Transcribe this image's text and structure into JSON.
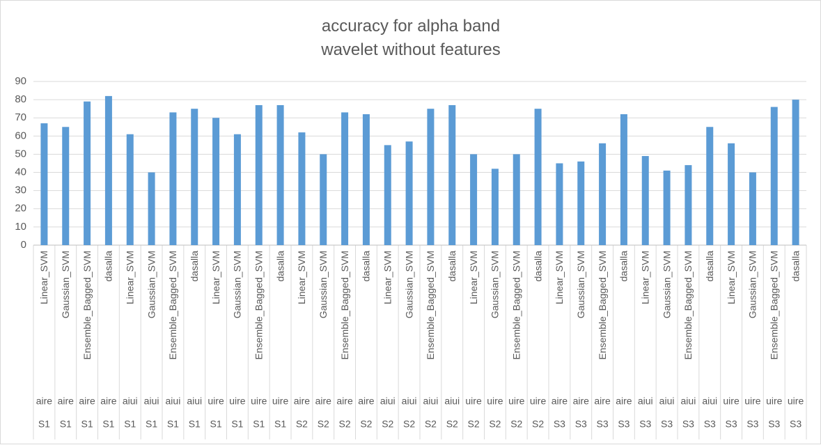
{
  "chart_data": {
    "type": "bar",
    "title_lines": [
      "accuracy for alpha band",
      "wavelet without features"
    ],
    "xlabel": "",
    "ylabel": "",
    "ylim": [
      0,
      90
    ],
    "yticks": [
      "0",
      "10",
      "20",
      "30",
      "40",
      "50",
      "60",
      "70",
      "80",
      "90"
    ],
    "grid": true,
    "legend": "none",
    "bar_color": "#5b9bd5",
    "grid_color": "#d9d9d9",
    "categories": [
      {
        "method": "Linear_SVM",
        "task": "aire",
        "subject": "S1"
      },
      {
        "method": "Gaussian_SVM",
        "task": "aire",
        "subject": "S1"
      },
      {
        "method": "Ensemble_Bagged_SVM",
        "task": "aire",
        "subject": "S1"
      },
      {
        "method": "dasalla",
        "task": "aire",
        "subject": "S1"
      },
      {
        "method": "Linear_SVM",
        "task": "aiui",
        "subject": "S1"
      },
      {
        "method": "Gaussian_SVM",
        "task": "aiui",
        "subject": "S1"
      },
      {
        "method": "Ensemble_Bagged_SVM",
        "task": "aiui",
        "subject": "S1"
      },
      {
        "method": "dasalla",
        "task": "aiui",
        "subject": "S1"
      },
      {
        "method": "Linear_SVM",
        "task": "uire",
        "subject": "S1"
      },
      {
        "method": "Gaussian_SVM",
        "task": "uire",
        "subject": "S1"
      },
      {
        "method": "Ensemble_Bagged_SVM",
        "task": "uire",
        "subject": "S1"
      },
      {
        "method": "dasalla",
        "task": "uire",
        "subject": "S1"
      },
      {
        "method": "Linear_SVM",
        "task": "aire",
        "subject": "S2"
      },
      {
        "method": "Gaussian_SVM",
        "task": "aire",
        "subject": "S2"
      },
      {
        "method": "Ensemble_Bagged_SVM",
        "task": "aire",
        "subject": "S2"
      },
      {
        "method": "dasalla",
        "task": "aire",
        "subject": "S2"
      },
      {
        "method": "Linear_SVM",
        "task": "aiui",
        "subject": "S2"
      },
      {
        "method": "Gaussian_SVM",
        "task": "aiui",
        "subject": "S2"
      },
      {
        "method": "Ensemble_Bagged_SVM",
        "task": "aiui",
        "subject": "S2"
      },
      {
        "method": "dasalla",
        "task": "aiui",
        "subject": "S2"
      },
      {
        "method": "Linear_SVM",
        "task": "uire",
        "subject": "S2"
      },
      {
        "method": "Gaussian_SVM",
        "task": "uire",
        "subject": "S2"
      },
      {
        "method": "Ensemble_Bagged_SVM",
        "task": "uire",
        "subject": "S2"
      },
      {
        "method": "dasalla",
        "task": "uire",
        "subject": "S2"
      },
      {
        "method": "Linear_SVM",
        "task": "aire",
        "subject": "S3"
      },
      {
        "method": "Gaussian_SVM",
        "task": "aire",
        "subject": "S3"
      },
      {
        "method": "Ensemble_Bagged_SVM",
        "task": "aire",
        "subject": "S3"
      },
      {
        "method": "dasalla",
        "task": "aire",
        "subject": "S3"
      },
      {
        "method": "Linear_SVM",
        "task": "aiui",
        "subject": "S3"
      },
      {
        "method": "Gaussian_SVM",
        "task": "aiui",
        "subject": "S3"
      },
      {
        "method": "Ensemble_Bagged_SVM",
        "task": "aiui",
        "subject": "S3"
      },
      {
        "method": "dasalla",
        "task": "aiui",
        "subject": "S3"
      },
      {
        "method": "Linear_SVM",
        "task": "uire",
        "subject": "S3"
      },
      {
        "method": "Gaussian_SVM",
        "task": "uire",
        "subject": "S3"
      },
      {
        "method": "Ensemble_Bagged_SVM",
        "task": "uire",
        "subject": "S3"
      },
      {
        "method": "dasalla",
        "task": "uire",
        "subject": "S3"
      }
    ],
    "values": [
      67,
      65,
      79,
      82,
      61,
      40,
      73,
      75,
      70,
      61,
      77,
      77,
      62,
      50,
      73,
      72,
      55,
      57,
      75,
      77,
      50,
      42,
      50,
      75,
      45,
      46,
      56,
      72,
      49,
      41,
      44,
      65,
      56,
      40,
      76,
      80
    ]
  }
}
